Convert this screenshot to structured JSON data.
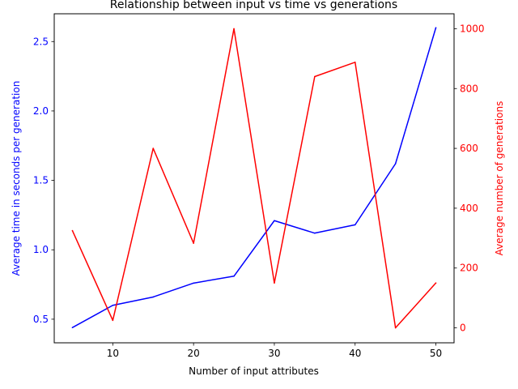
{
  "chart_data": {
    "type": "line",
    "title": "Relationship between input vs time vs generations",
    "xlabel": "Number of input attributes",
    "ylabel_left": "Average time in seconds per generation",
    "ylabel_right": "Average number of generations",
    "x": [
      5,
      10,
      15,
      20,
      25,
      30,
      35,
      40,
      45,
      50
    ],
    "xlim": [
      2.75,
      52.25
    ],
    "x_ticks": [
      10,
      20,
      30,
      40,
      50
    ],
    "ylim_left": [
      0.33,
      2.7
    ],
    "y_ticks_left": [
      0.5,
      1.0,
      1.5,
      2.0,
      2.5
    ],
    "ylim_right": [
      -50,
      1050
    ],
    "y_ticks_right": [
      0,
      200,
      400,
      600,
      800,
      1000
    ],
    "grid": false,
    "series": [
      {
        "axis": "left",
        "color": "#0000ff",
        "values": [
          0.44,
          0.6,
          0.66,
          0.76,
          0.81,
          1.21,
          1.12,
          1.18,
          1.62,
          2.6
        ]
      },
      {
        "axis": "right",
        "color": "#ff0000",
        "values": [
          325,
          25,
          600,
          283,
          1000,
          150,
          840,
          888,
          0,
          150
        ]
      }
    ]
  }
}
